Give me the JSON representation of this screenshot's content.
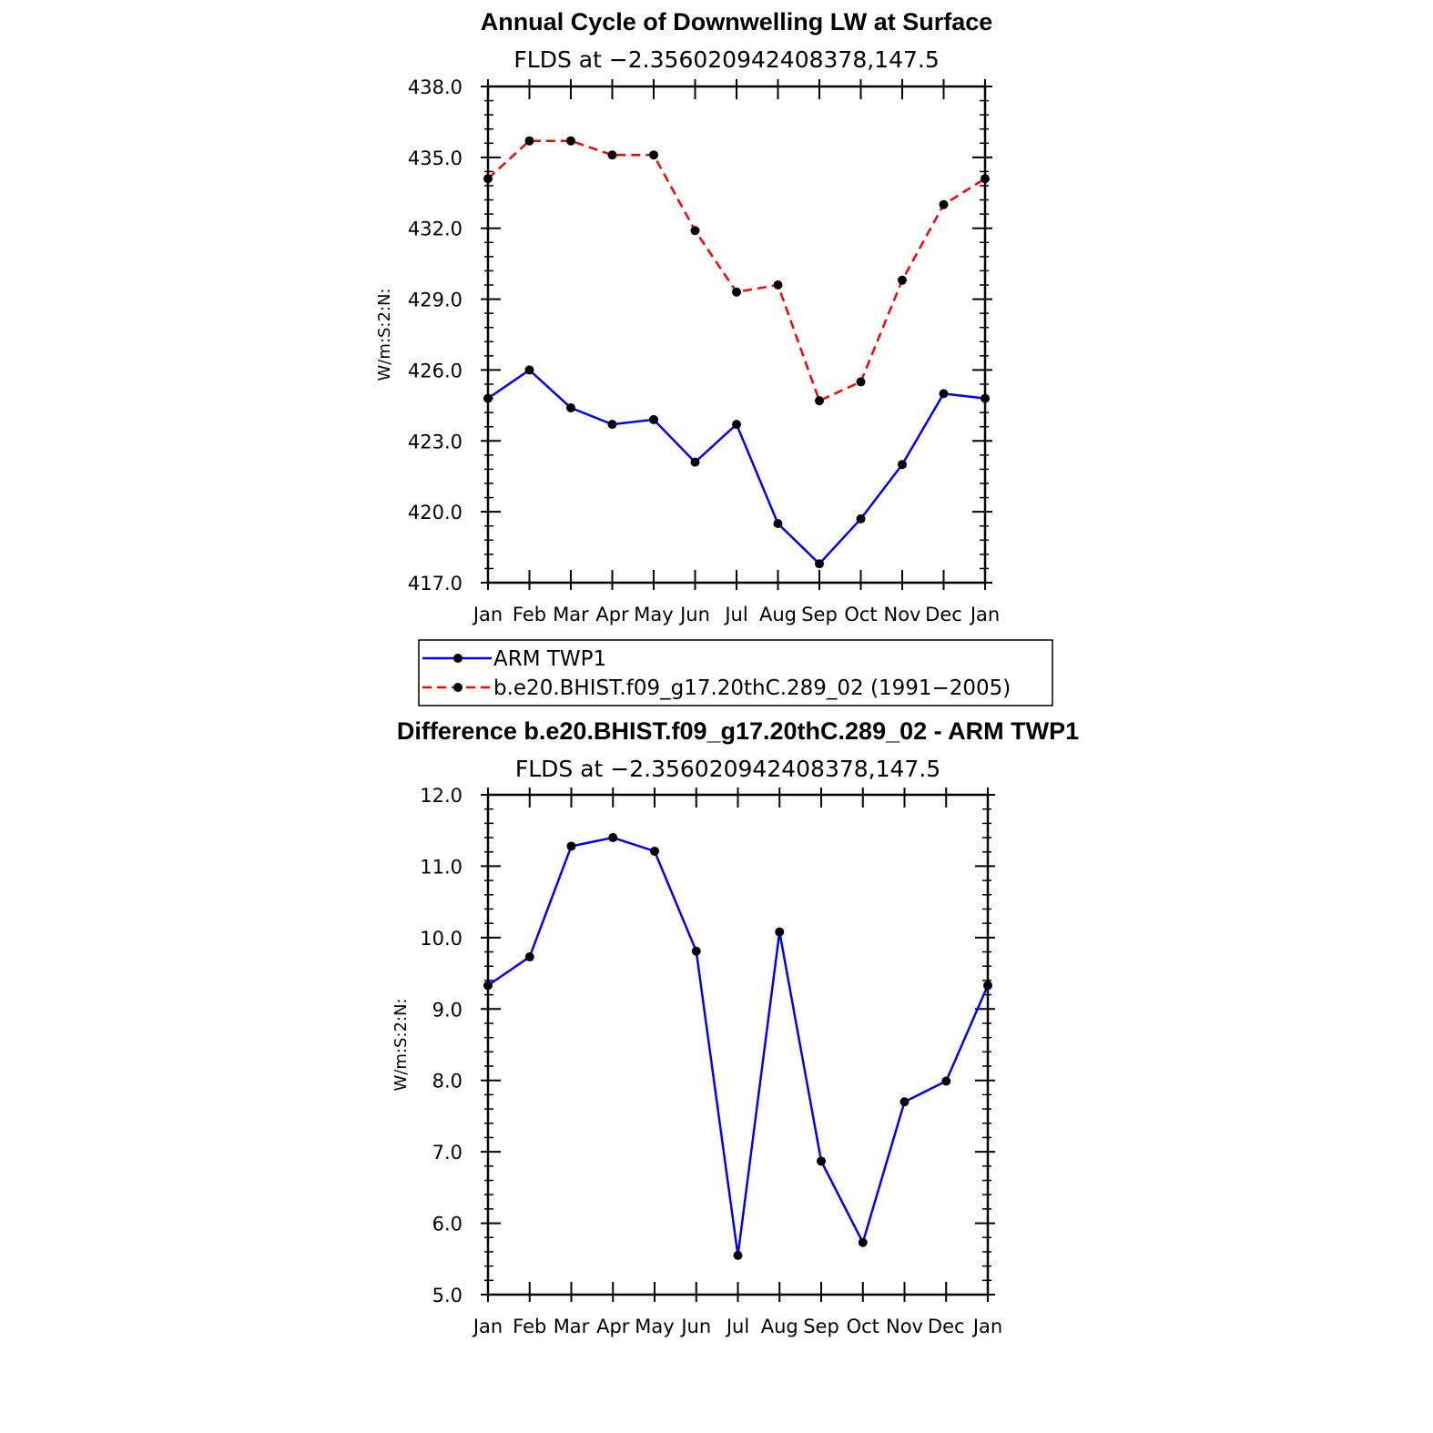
{
  "chart_data": [
    {
      "type": "line",
      "title": "Annual Cycle of Downwelling LW at Surface",
      "subtitle": "FLDS at −2.356020942408378,147.5",
      "ylabel": "W/m:S:2:N:",
      "xlabel": "",
      "categories": [
        "Jan",
        "Feb",
        "Mar",
        "Apr",
        "May",
        "Jun",
        "Jul",
        "Aug",
        "Sep",
        "Oct",
        "Nov",
        "Dec",
        "Jan"
      ],
      "ylim": [
        417.0,
        438.0
      ],
      "yticks": [
        "417.0",
        "420.0",
        "423.0",
        "426.0",
        "429.0",
        "432.0",
        "435.0",
        "438.0"
      ],
      "grid": false,
      "legend_position": "below",
      "series": [
        {
          "name": "ARM TWP1",
          "color": "#0000ff",
          "dash": "solid",
          "values": [
            424.8,
            426.0,
            424.4,
            423.7,
            423.9,
            422.1,
            423.7,
            419.5,
            417.8,
            419.7,
            422.0,
            425.0,
            424.8
          ]
        },
        {
          "name": "b.e20.BHIST.f09_g17.20thC.289_02 (1991−2005)",
          "color": "#ff0000",
          "dash": "dashed",
          "values": [
            434.1,
            435.7,
            435.7,
            435.1,
            435.1,
            431.9,
            429.3,
            429.6,
            424.7,
            425.5,
            429.8,
            433.0,
            434.1
          ]
        }
      ]
    },
    {
      "type": "line",
      "title": "Difference b.e20.BHIST.f09_g17.20thC.289_02 - ARM TWP1",
      "subtitle": "FLDS at −2.356020942408378,147.5",
      "ylabel": "W/m:S:2:N:",
      "xlabel": "",
      "categories": [
        "Jan",
        "Feb",
        "Mar",
        "Apr",
        "May",
        "Jun",
        "Jul",
        "Aug",
        "Sep",
        "Oct",
        "Nov",
        "Dec",
        "Jan"
      ],
      "ylim": [
        5.0,
        12.0
      ],
      "yticks": [
        "5.0",
        "6.0",
        "7.0",
        "8.0",
        "9.0",
        "10.0",
        "11.0",
        "12.0"
      ],
      "grid": false,
      "series": [
        {
          "color": "#0000ff",
          "dash": "solid",
          "values": [
            9.33,
            9.73,
            11.28,
            11.4,
            11.21,
            9.81,
            5.55,
            10.08,
            6.87,
            5.73,
            7.7,
            7.99,
            9.33
          ]
        }
      ]
    }
  ]
}
